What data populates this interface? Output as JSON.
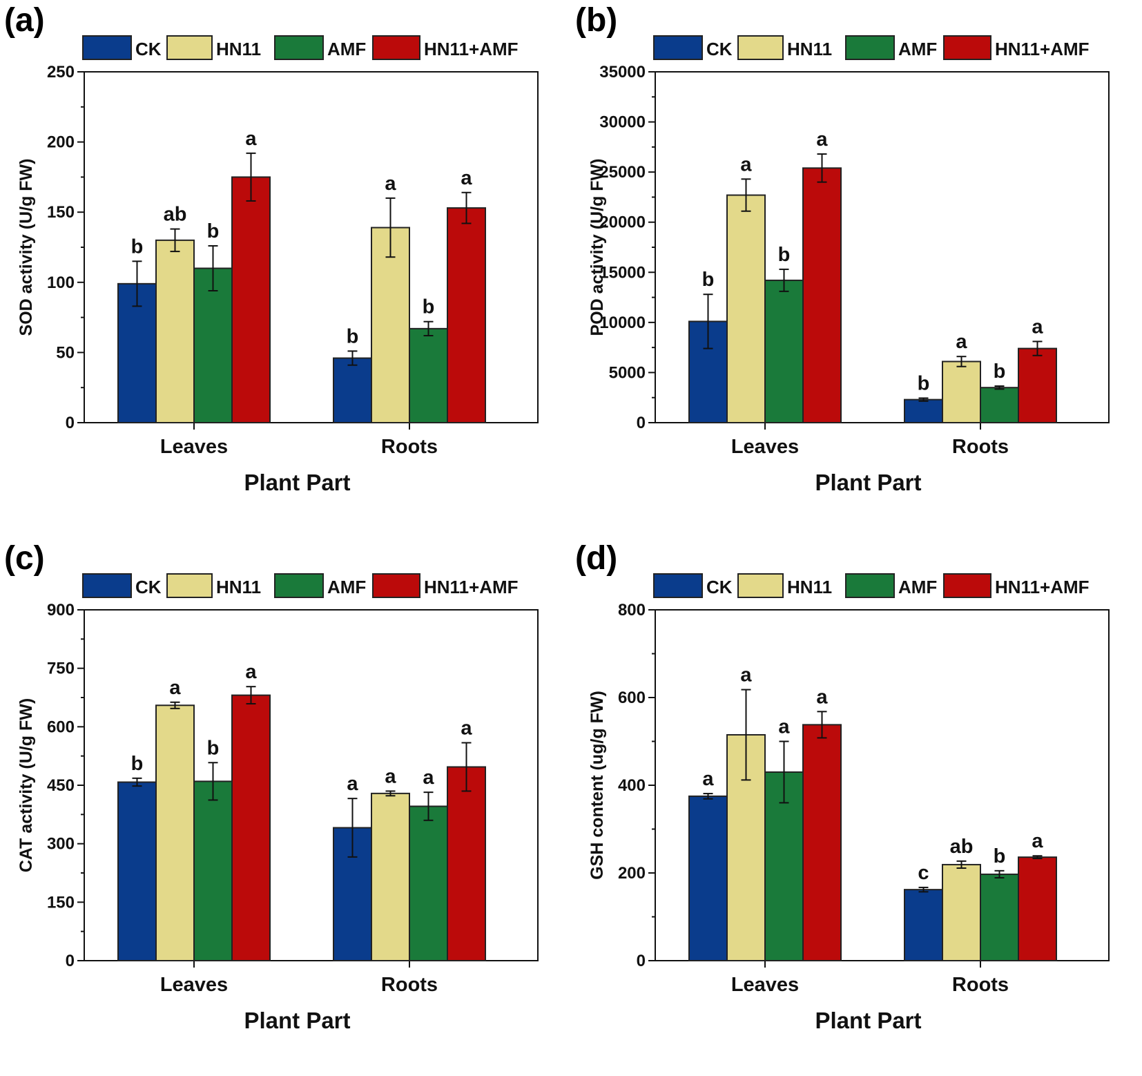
{
  "figure": {
    "series_names": [
      "CK",
      "HN11",
      "AMF",
      "HN11+AMF"
    ],
    "colors": [
      "#0a3c8c",
      "#e3d98a",
      "#1a7a3a",
      "#bb0a0a"
    ]
  },
  "chart_data": [
    {
      "type": "bar",
      "panel_label": "(a)",
      "categories": [
        "Leaves",
        "Roots"
      ],
      "xlabel": "Plant Part",
      "ylabel": "SOD activity (U/g FW)",
      "ylim": [
        0,
        250
      ],
      "yticks": [
        "0",
        "50",
        "100",
        "150",
        "200",
        "250"
      ],
      "series": [
        {
          "name": "CK",
          "values": [
            99,
            46
          ],
          "errors": [
            16,
            5
          ],
          "labels": [
            "b",
            "b"
          ]
        },
        {
          "name": "HN11",
          "values": [
            130,
            139
          ],
          "errors": [
            8,
            21
          ],
          "labels": [
            "ab",
            "a"
          ]
        },
        {
          "name": "AMF",
          "values": [
            110,
            67
          ],
          "errors": [
            16,
            5
          ],
          "labels": [
            "b",
            "b"
          ]
        },
        {
          "name": "HN11+AMF",
          "values": [
            175,
            153
          ],
          "errors": [
            17,
            11
          ],
          "labels": [
            "a",
            "a"
          ]
        }
      ]
    },
    {
      "type": "bar",
      "panel_label": "(b)",
      "categories": [
        "Leaves",
        "Roots"
      ],
      "xlabel": "Plant Part",
      "ylabel": "POD activity (U/g FW)",
      "ylim": [
        0,
        35000
      ],
      "yticks": [
        "0",
        "5000",
        "10000",
        "15000",
        "20000",
        "25000",
        "30000",
        "35000"
      ],
      "series": [
        {
          "name": "CK",
          "values": [
            10100,
            2300
          ],
          "errors": [
            2700,
            150
          ],
          "labels": [
            "b",
            "b"
          ]
        },
        {
          "name": "HN11",
          "values": [
            22700,
            6100
          ],
          "errors": [
            1600,
            500
          ],
          "labels": [
            "a",
            "a"
          ]
        },
        {
          "name": "AMF",
          "values": [
            14200,
            3500
          ],
          "errors": [
            1100,
            150
          ],
          "labels": [
            "b",
            "b"
          ]
        },
        {
          "name": "HN11+AMF",
          "values": [
            25400,
            7400
          ],
          "errors": [
            1400,
            700
          ],
          "labels": [
            "a",
            "a"
          ]
        }
      ]
    },
    {
      "type": "bar",
      "panel_label": "(c)",
      "categories": [
        "Leaves",
        "Roots"
      ],
      "xlabel": "Plant Part",
      "ylabel": "CAT activity (U/g FW)",
      "ylim": [
        0,
        900
      ],
      "yticks": [
        "0",
        "150",
        "300",
        "450",
        "600",
        "750",
        "900"
      ],
      "series": [
        {
          "name": "CK",
          "values": [
            458,
            341
          ],
          "errors": [
            10,
            75
          ],
          "labels": [
            "b",
            "a"
          ]
        },
        {
          "name": "HN11",
          "values": [
            655,
            429
          ],
          "errors": [
            8,
            6
          ],
          "labels": [
            "a",
            "a"
          ]
        },
        {
          "name": "AMF",
          "values": [
            460,
            396
          ],
          "errors": [
            48,
            36
          ],
          "labels": [
            "b",
            "a"
          ]
        },
        {
          "name": "HN11+AMF",
          "values": [
            681,
            497
          ],
          "errors": [
            22,
            62
          ],
          "labels": [
            "a",
            "a"
          ]
        }
      ]
    },
    {
      "type": "bar",
      "panel_label": "(d)",
      "categories": [
        "Leaves",
        "Roots"
      ],
      "xlabel": "Plant Part",
      "ylabel": "GSH content (ug/g FW)",
      "ylim": [
        0,
        800
      ],
      "yticks": [
        "0",
        "200",
        "400",
        "600",
        "800"
      ],
      "series": [
        {
          "name": "CK",
          "values": [
            375,
            162
          ],
          "errors": [
            6,
            5
          ],
          "labels": [
            "a",
            "c"
          ]
        },
        {
          "name": "HN11",
          "values": [
            515,
            219
          ],
          "errors": [
            103,
            8
          ],
          "labels": [
            "a",
            "ab"
          ]
        },
        {
          "name": "AMF",
          "values": [
            430,
            197
          ],
          "errors": [
            70,
            8
          ],
          "labels": [
            "a",
            "b"
          ]
        },
        {
          "name": "HN11+AMF",
          "values": [
            538,
            236
          ],
          "errors": [
            30,
            3
          ],
          "labels": [
            "a",
            "a"
          ]
        }
      ]
    }
  ]
}
